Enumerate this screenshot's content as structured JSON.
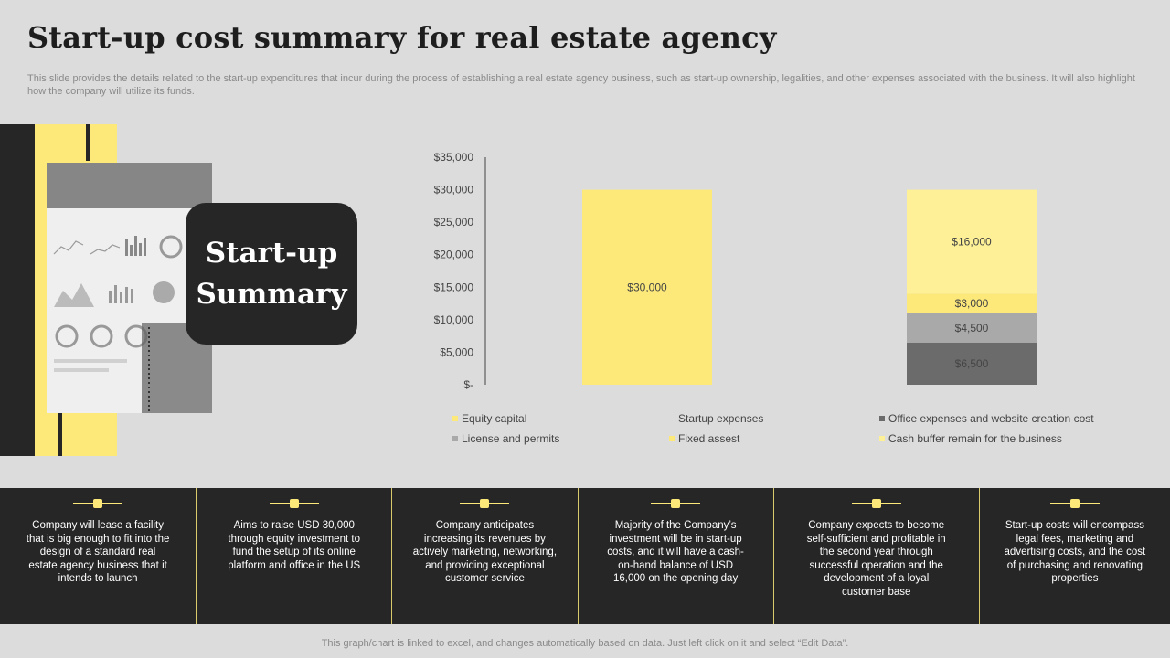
{
  "title": "Start-up cost summary for real estate agency",
  "subtitle": "This slide provides the details related to the start-up expenditures that incur during the process of establishing a real estate agency business, such as start-up ownership, legalities, and other expenses associated with the business. It will also highlight how the company will utilize its funds.",
  "summary_label": "Start-up\nSummary",
  "colors": {
    "equity": "#fde97a",
    "office": "#6b6b6b",
    "license": "#a9a9a9",
    "fixed": "#fde97a",
    "cash": "#fdf097",
    "dark": "#262626"
  },
  "chart_data": {
    "type": "bar",
    "stacked": true,
    "title": "",
    "xlabel": "",
    "ylabel": "",
    "ylim": [
      0,
      35000
    ],
    "yticks": [
      "$-",
      "$5,000",
      "$10,000",
      "$15,000",
      "$20,000",
      "$25,000",
      "$30,000",
      "$35,000"
    ],
    "categories": [
      "",
      ""
    ],
    "legend_position": "bottom",
    "series": [
      {
        "name": "Equity capital",
        "values": [
          30000,
          0
        ],
        "labels": [
          "$30,000",
          ""
        ],
        "color": "#fde97a"
      },
      {
        "name": "Office expenses and website creation cost",
        "values": [
          0,
          6500
        ],
        "labels": [
          "",
          "$6,500"
        ],
        "color": "#6b6b6b"
      },
      {
        "name": "License and permits",
        "values": [
          0,
          4500
        ],
        "labels": [
          "",
          "$4,500"
        ],
        "color": "#a9a9a9"
      },
      {
        "name": "Fixed assest",
        "values": [
          0,
          3000
        ],
        "labels": [
          "",
          "$3,000"
        ],
        "color": "#fde97a"
      },
      {
        "name": "Cash buffer remain for the business",
        "values": [
          0,
          16000
        ],
        "labels": [
          "",
          "$16,000"
        ],
        "color": "#fdf097"
      }
    ],
    "legend": [
      {
        "label": "Equity capital",
        "color": "#fde97a"
      },
      {
        "label": "Startup expenses",
        "color": ""
      },
      {
        "label": "Office expenses and website creation cost",
        "color": "#6b6b6b"
      },
      {
        "label": "License and permits",
        "color": "#a9a9a9"
      },
      {
        "label": "Fixed assest",
        "color": "#fde97a"
      },
      {
        "label": "Cash buffer remain for the business",
        "color": "#fdf097"
      }
    ]
  },
  "points": [
    "Company will lease a facility that is big enough to fit into the design of a standard real estate agency business that it intends to launch",
    "Aims to raise USD 30,000 through equity investment to fund the setup of its online platform and office in the US",
    "Company anticipates increasing its revenues by actively marketing, networking, and providing exceptional customer service",
    "Majority of the Company’s investment will be in start-up costs, and it will have a cash-on-hand balance of USD 16,000 on the opening day",
    "Company expects to become self-sufficient and profitable in the second year through successful operation and the development of a loyal customer base",
    "Start-up costs will encompass legal fees, marketing and advertising costs, and the cost of purchasing and renovating properties"
  ],
  "footer": "This graph/chart is linked to excel, and changes automatically based on data. Just left click on it and select “Edit Data”."
}
